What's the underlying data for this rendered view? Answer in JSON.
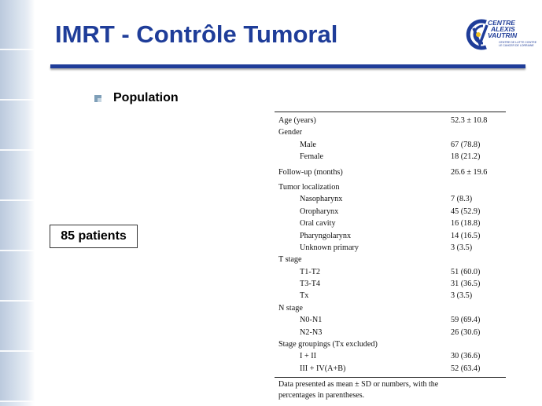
{
  "slide": {
    "title": "IMRT - Contrôle Tumoral",
    "bullet": "Population",
    "patients_box": "85 patients"
  },
  "logo": {
    "line1": "CENTRE",
    "line2": "ALEXIS",
    "line3": "VAUTRIN",
    "sub1": "CENTRE DE LUTTE CONTRE",
    "sub2": "LE CANCER DE LORRAINE"
  },
  "colors": {
    "title": "#1f3d99",
    "rule": "#1f3d99"
  },
  "table": {
    "rows": [
      {
        "label": "Age (years)",
        "value": "52.3 ± 10.8",
        "indent": false,
        "gap": false
      },
      {
        "label": "Gender",
        "value": "",
        "indent": false,
        "gap": false
      },
      {
        "label": "Male",
        "value": "67 (78.8)",
        "indent": true,
        "gap": false
      },
      {
        "label": "Female",
        "value": "18 (21.2)",
        "indent": true,
        "gap": false
      },
      {
        "label": "Follow-up (months)",
        "value": "26.6 ± 19.6",
        "indent": false,
        "gap": true
      },
      {
        "label": "Tumor localization",
        "value": "",
        "indent": false,
        "gap": true
      },
      {
        "label": "Nasopharynx",
        "value": "7 (8.3)",
        "indent": true,
        "gap": false
      },
      {
        "label": "Oropharynx",
        "value": "45 (52.9)",
        "indent": true,
        "gap": false
      },
      {
        "label": "Oral cavity",
        "value": "16 (18.8)",
        "indent": true,
        "gap": false
      },
      {
        "label": "Pharyngolarynx",
        "value": "14 (16.5)",
        "indent": true,
        "gap": false
      },
      {
        "label": "Unknown primary",
        "value": "3 (3.5)",
        "indent": true,
        "gap": false
      },
      {
        "label": "T stage",
        "value": "",
        "indent": false,
        "gap": false
      },
      {
        "label": "T1-T2",
        "value": "51 (60.0)",
        "indent": true,
        "gap": false
      },
      {
        "label": "T3-T4",
        "value": "31 (36.5)",
        "indent": true,
        "gap": false
      },
      {
        "label": "Tx",
        "value": "3 (3.5)",
        "indent": true,
        "gap": false
      },
      {
        "label": "N stage",
        "value": "",
        "indent": false,
        "gap": false
      },
      {
        "label": "N0-N1",
        "value": "59 (69.4)",
        "indent": true,
        "gap": false
      },
      {
        "label": "N2-N3",
        "value": "26 (30.6)",
        "indent": true,
        "gap": false
      },
      {
        "label": "Stage groupings (Tx excluded)",
        "value": "",
        "indent": false,
        "gap": false
      },
      {
        "label": "I + II",
        "value": "30 (36.6)",
        "indent": true,
        "gap": false
      },
      {
        "label": "III + IV(A+B)",
        "value": "52 (63.4)",
        "indent": true,
        "gap": false
      }
    ],
    "footnote_line1": "Data presented as mean ± SD or numbers, with the",
    "footnote_line2": "percentages in parentheses."
  }
}
